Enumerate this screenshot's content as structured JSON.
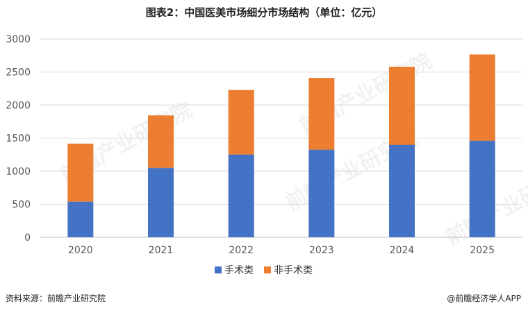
{
  "chart_data": {
    "type": "bar",
    "stacked": true,
    "title": "图表2：中国医美市场细分市场结构（单位：亿元）",
    "categories": [
      "2020",
      "2021",
      "2022",
      "2023",
      "2024",
      "2025"
    ],
    "series": [
      {
        "name": "手术类",
        "values": [
          540,
          1050,
          1250,
          1325,
          1400,
          1460
        ],
        "color": "#4472C4"
      },
      {
        "name": "非手术类",
        "values": [
          875,
          795,
          980,
          1085,
          1180,
          1305
        ],
        "color": "#ED7D31"
      }
    ],
    "ylim": [
      0,
      3000
    ],
    "yticks": [
      "0",
      "500",
      "1000",
      "1500",
      "2000",
      "2500",
      "3000"
    ],
    "grid": true,
    "legend_position": "bottom"
  },
  "footer": {
    "source": "资料来源：前瞻产业研究院",
    "brand": "@前瞻经济学人APP"
  },
  "watermark": {
    "text": "前瞻产业研究院"
  }
}
